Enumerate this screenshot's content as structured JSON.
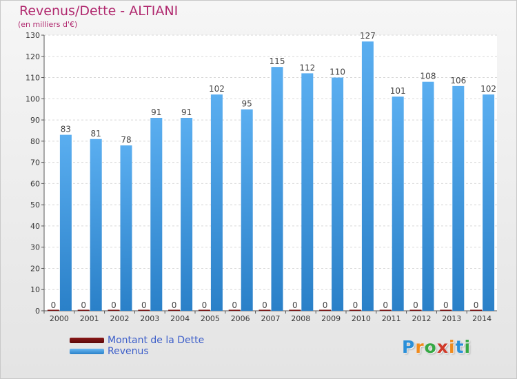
{
  "chart_data": {
    "type": "bar",
    "title": "Revenus/Dette - ALTIANI",
    "subtitle": "(en milliers d'€)",
    "categories": [
      "2000",
      "2001",
      "2002",
      "2003",
      "2004",
      "2005",
      "2006",
      "2007",
      "2008",
      "2009",
      "2010",
      "2011",
      "2012",
      "2013",
      "2014"
    ],
    "series": [
      {
        "name": "Montant de la Dette",
        "color": "#7a1010",
        "values": [
          0,
          0,
          0,
          0,
          0,
          0,
          0,
          0,
          0,
          0,
          0,
          0,
          0,
          0,
          0
        ]
      },
      {
        "name": "Revenus",
        "color": "#4a9fe0",
        "values": [
          83,
          81,
          78,
          91,
          91,
          102,
          95,
          115,
          112,
          110,
          127,
          101,
          108,
          106,
          102
        ]
      }
    ],
    "ylim": [
      0,
      130
    ],
    "yticks": [
      0,
      10,
      20,
      30,
      40,
      50,
      60,
      70,
      80,
      90,
      100,
      110,
      120,
      130
    ],
    "grid": true,
    "legend_position": "bottom-left"
  },
  "logo": {
    "letters": [
      "P",
      "r",
      "o",
      "x",
      "i",
      "t",
      "i"
    ],
    "colors": [
      "#2a8fd8",
      "#f08a1c",
      "#35a844",
      "#d03a2a",
      "#f08a1c",
      "#2a8fd8",
      "#35a844"
    ]
  }
}
